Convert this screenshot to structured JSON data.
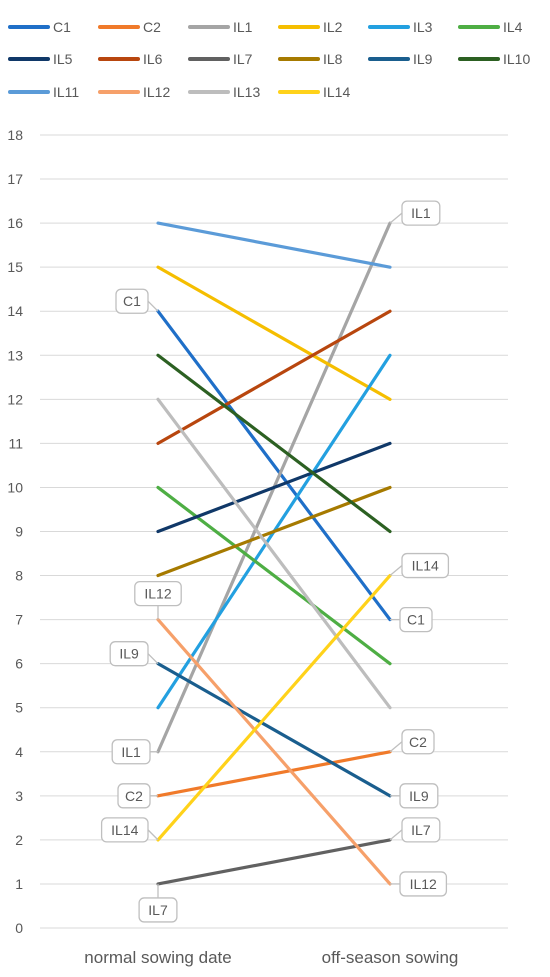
{
  "chart_data": {
    "type": "line",
    "title": "",
    "xlabel": "",
    "ylabel": "",
    "categories": [
      "normal sowing date",
      "off-season sowing"
    ],
    "ylim": [
      0,
      18
    ],
    "yticks": [
      "0",
      "1",
      "2",
      "3",
      "4",
      "5",
      "6",
      "7",
      "8",
      "9",
      "10",
      "11",
      "12",
      "13",
      "14",
      "15",
      "16",
      "17",
      "18"
    ],
    "grid": true,
    "legend_position": "top",
    "series": [
      {
        "name": "C1",
        "color": "#1F6FC8",
        "values": [
          14,
          7
        ]
      },
      {
        "name": "C2",
        "color": "#F07A2A",
        "values": [
          3,
          4
        ]
      },
      {
        "name": "IL1",
        "color": "#A5A5A5",
        "values": [
          4,
          16
        ]
      },
      {
        "name": "IL2",
        "color": "#F5BE00",
        "values": [
          15,
          12
        ]
      },
      {
        "name": "IL3",
        "color": "#23A0E0",
        "values": [
          5,
          13
        ]
      },
      {
        "name": "IL4",
        "color": "#4EAE44",
        "values": [
          10,
          6
        ]
      },
      {
        "name": "IL5",
        "color": "#103868",
        "values": [
          9,
          11
        ]
      },
      {
        "name": "IL6",
        "color": "#B8460E",
        "values": [
          11,
          14
        ]
      },
      {
        "name": "IL7",
        "color": "#616161",
        "values": [
          1,
          2
        ]
      },
      {
        "name": "IL8",
        "color": "#A67A00",
        "values": [
          8,
          10
        ]
      },
      {
        "name": "IL9",
        "color": "#1A5E8E",
        "values": [
          6,
          3
        ]
      },
      {
        "name": "IL10",
        "color": "#2C6022",
        "values": [
          13,
          9
        ]
      },
      {
        "name": "IL11",
        "color": "#5B9BD8",
        "values": [
          16,
          15
        ]
      },
      {
        "name": "IL12",
        "color": "#F6A06A",
        "values": [
          7,
          1
        ]
      },
      {
        "name": "IL13",
        "color": "#BDBDBD",
        "values": [
          12,
          5
        ]
      },
      {
        "name": "IL14",
        "color": "#FFD21A",
        "values": [
          2,
          8
        ]
      }
    ],
    "annotations": [
      {
        "text": "C1",
        "series": "C1",
        "point": 0,
        "side": "left-up"
      },
      {
        "text": "C1",
        "series": "C1",
        "point": 1,
        "side": "right"
      },
      {
        "text": "C2",
        "series": "C2",
        "point": 0,
        "side": "left"
      },
      {
        "text": "C2",
        "series": "C2",
        "point": 1,
        "side": "right-up"
      },
      {
        "text": "IL1",
        "series": "IL1",
        "point": 0,
        "side": "left"
      },
      {
        "text": "IL1",
        "series": "IL1",
        "point": 1,
        "side": "right-up"
      },
      {
        "text": "IL7",
        "series": "IL7",
        "point": 0,
        "side": "below"
      },
      {
        "text": "IL7",
        "series": "IL7",
        "point": 1,
        "side": "right-up"
      },
      {
        "text": "IL9",
        "series": "IL9",
        "point": 0,
        "side": "left-up"
      },
      {
        "text": "IL9",
        "series": "IL9",
        "point": 1,
        "side": "right"
      },
      {
        "text": "IL12",
        "series": "IL12",
        "point": 0,
        "side": "above"
      },
      {
        "text": "IL12",
        "series": "IL12",
        "point": 1,
        "side": "right"
      },
      {
        "text": "IL14",
        "series": "IL14",
        "point": 0,
        "side": "left-up"
      },
      {
        "text": "IL14",
        "series": "IL14",
        "point": 1,
        "side": "right-up"
      }
    ],
    "colors": {
      "grid": "#D9D9D9",
      "text": "#595959",
      "callout_border": "#BFBFBF"
    }
  }
}
